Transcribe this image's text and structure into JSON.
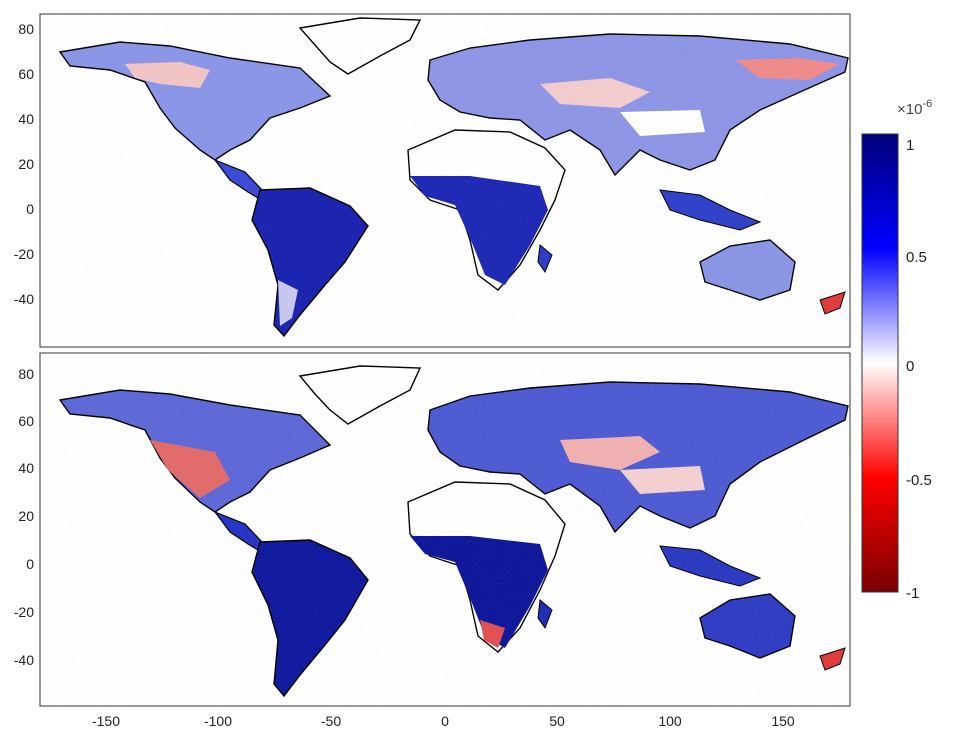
{
  "chart_data": {
    "type": "heatmap",
    "panels": [
      {
        "xlim": [
          -180,
          180
        ],
        "ylim": [
          -60,
          88
        ],
        "yticks": [
          "80",
          "60",
          "40",
          "20",
          "0",
          "-20",
          "-40"
        ]
      },
      {
        "xlim": [
          -180,
          180
        ],
        "ylim": [
          -60,
          88
        ],
        "yticks": [
          "80",
          "60",
          "40",
          "20",
          "0",
          "-20",
          "-40"
        ],
        "xticks": [
          "-150",
          "-100",
          "-50",
          "0",
          "50",
          "100",
          "150"
        ]
      }
    ],
    "colorbar": {
      "range": [
        -1,
        1
      ],
      "ticks": [
        "1",
        "0.5",
        "0",
        "-0.5",
        "-1"
      ],
      "multiplier": "×10",
      "exponent": "-6",
      "colors": [
        "#7a0000",
        "#ff0000",
        "#ffffff",
        "#0000ff",
        "#00007a"
      ]
    },
    "grid": false
  }
}
